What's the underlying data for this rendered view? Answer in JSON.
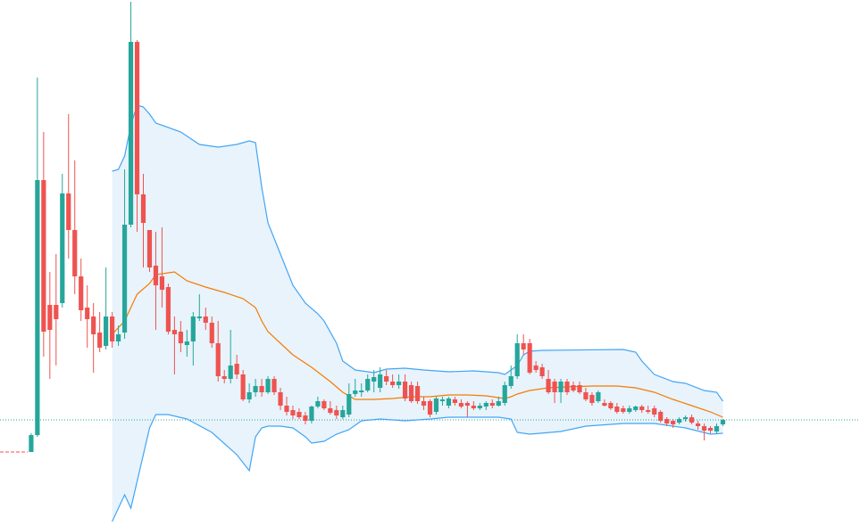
{
  "chart_data": {
    "type": "candlestick",
    "xlim": [
      -5,
      133
    ],
    "ylim": [
      10,
      600
    ],
    "up_color": "#26a69a",
    "down_color": "#ef5350",
    "open": [
      93,
      112,
      398,
      258,
      258,
      260,
      383,
      342,
      290,
      255,
      245,
      227,
      212,
      245,
      217,
      227,
      348,
      553,
      382,
      342,
      302,
      290,
      278,
      230,
      228,
      213,
      217,
      243,
      245,
      238,
      215,
      178,
      175,
      192,
      180,
      152,
      160,
      167,
      160,
      175,
      160,
      145,
      140,
      138,
      134,
      128,
      144,
      150,
      142,
      140,
      132,
      135,
      158,
      160,
      162,
      172,
      165,
      178,
      172,
      168,
      172,
      168,
      167,
      150,
      150,
      138,
      150,
      145,
      152,
      148,
      148,
      145,
      142,
      144,
      148,
      145,
      148,
      167,
      178,
      215,
      215,
      190,
      188,
      175,
      172,
      160,
      172,
      168,
      168,
      160,
      157,
      150,
      148,
      148,
      144,
      142,
      138,
      140,
      144,
      140,
      142,
      138,
      130,
      128,
      126,
      130,
      132,
      125,
      122,
      120,
      116,
      124
    ],
    "high": [
      114,
      513,
      452,
      295,
      315,
      405,
      472,
      420,
      310,
      280,
      260,
      250,
      300,
      250,
      235,
      410,
      598,
      555,
      405,
      342,
      340,
      345,
      282,
      245,
      240,
      230,
      250,
      270,
      255,
      245,
      240,
      185,
      230,
      202,
      185,
      170,
      175,
      175,
      178,
      178,
      165,
      155,
      145,
      142,
      138,
      145,
      155,
      152,
      150,
      145,
      145,
      170,
      175,
      170,
      180,
      185,
      188,
      185,
      180,
      180,
      180,
      172,
      172,
      155,
      152,
      155,
      155,
      155,
      155,
      152,
      150,
      150,
      148,
      150,
      152,
      155,
      172,
      190,
      225,
      225,
      220,
      195,
      192,
      185,
      175,
      175,
      175,
      172,
      172,
      165,
      160,
      162,
      152,
      150,
      148,
      145,
      145,
      145,
      146,
      145,
      145,
      140,
      132,
      130,
      132,
      134,
      135,
      128,
      125,
      122,
      125,
      130
    ],
    "low": [
      93,
      110,
      200,
      175,
      190,
      255,
      310,
      270,
      240,
      210,
      182,
      205,
      208,
      210,
      212,
      220,
      345,
      340,
      300,
      295,
      230,
      255,
      225,
      180,
      205,
      200,
      190,
      240,
      230,
      210,
      172,
      170,
      170,
      175,
      150,
      148,
      155,
      155,
      158,
      157,
      140,
      134,
      130,
      130,
      124,
      125,
      142,
      140,
      135,
      130,
      130,
      132,
      155,
      155,
      160,
      160,
      160,
      168,
      165,
      164,
      150,
      148,
      147,
      140,
      132,
      135,
      145,
      142,
      145,
      142,
      132,
      140,
      140,
      140,
      142,
      144,
      145,
      164,
      175,
      202,
      180,
      182,
      175,
      158,
      148,
      148,
      157,
      160,
      158,
      150,
      145,
      148,
      144,
      140,
      136,
      136,
      136,
      138,
      137,
      136,
      132,
      126,
      122,
      120,
      124,
      127,
      124,
      118,
      106,
      114,
      114,
      122
    ],
    "close": [
      112,
      398,
      228,
      230,
      242,
      383,
      342,
      290,
      252,
      242,
      225,
      210,
      245,
      217,
      225,
      348,
      553,
      382,
      350,
      300,
      280,
      275,
      228,
      225,
      215,
      217,
      245,
      245,
      238,
      215,
      178,
      175,
      190,
      180,
      152,
      160,
      167,
      160,
      175,
      160,
      145,
      138,
      134,
      132,
      128,
      144,
      150,
      142,
      137,
      134,
      140,
      158,
      162,
      162,
      175,
      177,
      180,
      172,
      168,
      172,
      153,
      150,
      150,
      145,
      135,
      153,
      152,
      153,
      148,
      144,
      145,
      142,
      145,
      148,
      145,
      150,
      168,
      178,
      215,
      208,
      182,
      185,
      178,
      160,
      160,
      172,
      160,
      162,
      160,
      152,
      148,
      160,
      145,
      142,
      138,
      138,
      142,
      144,
      140,
      138,
      135,
      128,
      125,
      124,
      130,
      132,
      126,
      122,
      117,
      117,
      122,
      129
    ],
    "series": [
      {
        "color": "#42a5f5",
        "x": [
          13,
          14,
          15,
          16,
          17,
          18,
          19,
          20,
          24,
          27,
          30,
          33,
          35,
          36,
          37,
          38,
          40,
          42,
          44,
          46,
          47,
          49,
          50,
          52,
          55,
          57,
          60,
          63,
          67,
          71,
          75,
          76,
          77,
          78,
          79,
          80,
          82,
          95,
          97,
          98,
          100,
          103,
          105,
          108,
          110,
          111
        ],
        "values": [
          408,
          410,
          425,
          460,
          482,
          480,
          472,
          462,
          452,
          438,
          435,
          438,
          442,
          440,
          390,
          350,
          315,
          280,
          260,
          248,
          240,
          215,
          195,
          185,
          182,
          186,
          187,
          185,
          183,
          184,
          182,
          180,
          185,
          190,
          202,
          206,
          207,
          208,
          205,
          195,
          180,
          172,
          170,
          162,
          160,
          150
        ]
      },
      {
        "color": "#f57c00",
        "x": [
          13,
          15,
          17,
          19,
          20,
          23,
          25,
          28,
          31,
          34,
          36,
          37,
          38,
          40,
          42,
          45,
          48,
          50,
          52,
          55,
          58,
          61,
          64,
          67,
          70,
          73,
          76,
          77,
          78,
          80,
          83,
          86,
          90,
          94,
          97,
          100,
          103,
          106,
          109,
          111
        ],
        "values": [
          225,
          240,
          270,
          282,
          292,
          295,
          285,
          278,
          272,
          265,
          255,
          240,
          228,
          215,
          202,
          188,
          172,
          160,
          152,
          152,
          153,
          155,
          155,
          157,
          157,
          156,
          153,
          155,
          158,
          162,
          165,
          166,
          167,
          167,
          165,
          160,
          152,
          145,
          138,
          132
        ]
      },
      {
        "color": "#42a5f5",
        "x": [
          13,
          15,
          16,
          17,
          18,
          19,
          20,
          22,
          25,
          29,
          33,
          35,
          36,
          37,
          38,
          40,
          42,
          44,
          45,
          47,
          49,
          51,
          53,
          56,
          60,
          64,
          67,
          75,
          77,
          78,
          80,
          85,
          89,
          95,
          100,
          105,
          109,
          111
        ],
        "values": [
          15,
          45,
          30,
          60,
          90,
          120,
          135,
          135,
          130,
          115,
          90,
          72,
          110,
          120,
          122,
          122,
          120,
          110,
          103,
          105,
          113,
          118,
          128,
          130,
          128,
          130,
          132,
          132,
          130,
          115,
          113,
          116,
          122,
          125,
          125,
          120,
          113,
          114
        ]
      }
    ],
    "band_fill": "#e8f3fc",
    "last_price": 129,
    "last_price_color": "#26a69a",
    "base_line": 93,
    "base_line_color": "#ef5350"
  }
}
